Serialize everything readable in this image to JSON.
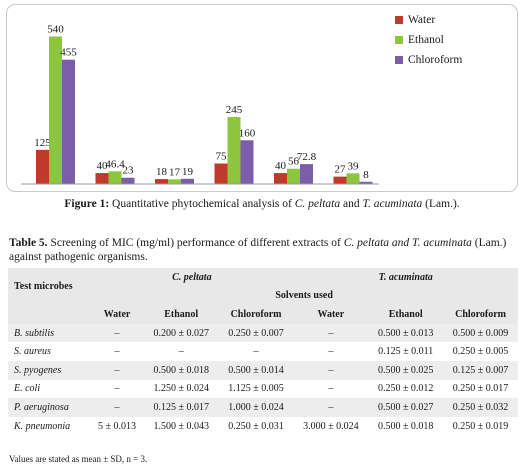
{
  "chart_data": {
    "type": "bar",
    "categories": [
      "",
      "",
      "",
      "",
      "",
      ""
    ],
    "series": [
      {
        "name": "Water",
        "values": [
          125,
          40,
          18,
          75,
          40,
          27
        ],
        "labels": [
          "125",
          "40",
          "18",
          "75",
          "40",
          "27"
        ],
        "color": "#c0392b"
      },
      {
        "name": "Ethanol",
        "values": [
          540,
          46.4,
          17,
          245,
          56,
          39
        ],
        "labels": [
          "540",
          "46.4",
          "17",
          "245",
          "56",
          "39"
        ],
        "color": "#8cc63f"
      },
      {
        "name": "Chloroform",
        "values": [
          455,
          23,
          19,
          160,
          72.8,
          8
        ],
        "labels": [
          "455",
          "23",
          "19",
          "160",
          "72.8",
          "8"
        ],
        "color": "#7b5ea7"
      }
    ],
    "ylim": [
      0,
      560
    ],
    "grid": false,
    "legend": "top-right"
  },
  "figure_caption": {
    "label": "Figure 1:",
    "text_a": " Quantitative phytochemical analysis of ",
    "species_a": "C. peltata",
    "text_b": " and ",
    "species_b": "T. acuminata",
    "text_c": " (Lam.)."
  },
  "table_caption": {
    "label": "Table 5.",
    "text_a": " Screening of MIC (mg/ml) performance of different extracts of ",
    "species": "C. peltata and T. acuminata",
    "text_b": " (Lam.) against pathogenic organisms."
  },
  "table": {
    "test_microbes": "Test microbes",
    "plant_1": "C. peltata",
    "plant_2": "T. acuminata",
    "solvents_used": "Solvents used",
    "columns": [
      "Water",
      "Ethanol",
      "Chloroform",
      "Water",
      "Ethanol",
      "Chloroform"
    ],
    "rows": [
      {
        "organism": "B. subtilis",
        "cells": [
          "–",
          "0.200 ± 0.027",
          "0.250 ± 0.007",
          "–",
          "0.500 ± 0.013",
          "0.500 ± 0.009"
        ]
      },
      {
        "organism": "S. aureus",
        "cells": [
          "–",
          "–",
          "–",
          "–",
          "0.125 ± 0.011",
          "0.250 ± 0.005"
        ]
      },
      {
        "organism": "S. pyogenes",
        "cells": [
          "–",
          "0.500 ± 0.018",
          "0.500 ± 0.014",
          "–",
          "0.500 ± 0.025",
          "0.125 ± 0.007"
        ]
      },
      {
        "organism": "E. coli",
        "cells": [
          "–",
          "1.250 ± 0.024",
          "1.125 ± 0.005",
          "–",
          "0.250 ± 0.012",
          "0.250 ± 0.017"
        ]
      },
      {
        "organism": "P. aeruginosa",
        "cells": [
          "–",
          "0.125 ± 0.017",
          "1.000 ± 0.024",
          "–",
          "0.500 ± 0.027",
          "0.250 ± 0.032"
        ]
      },
      {
        "organism": "K. pneumonia",
        "cells": [
          "5 ± 0.013",
          "1.500 ± 0.043",
          "0.250 ± 0.031",
          "3.000 ± 0.024",
          "0.500 ± 0.018",
          "0.250 ± 0.019"
        ]
      }
    ]
  },
  "note": "Values are stated as mean ± SD, n = 3."
}
